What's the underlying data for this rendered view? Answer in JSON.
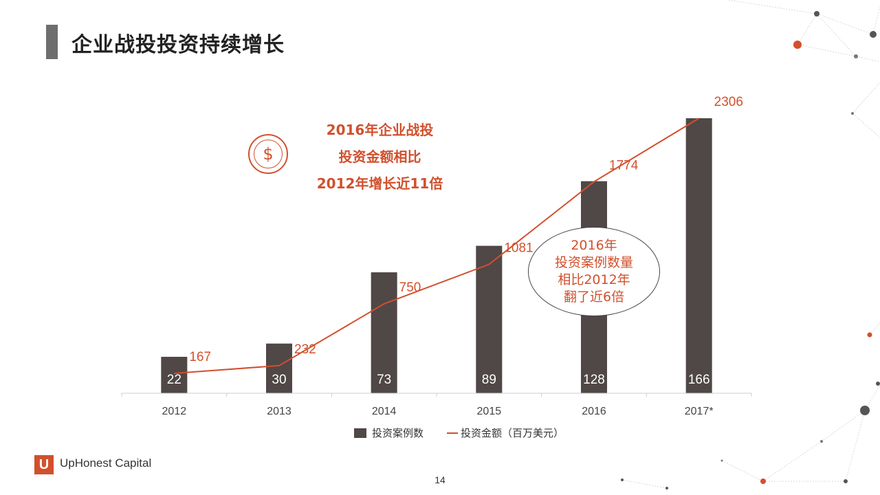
{
  "title": "企业战投投资持续增长",
  "callout": {
    "line1": "2016年企业战投",
    "line2": "投资金额相比",
    "line3": "2012年增长近11倍"
  },
  "dollar_symbol": "$",
  "ellipse_note": {
    "line1": "2016年",
    "line2": "投资案例数量",
    "line3": "相比2012年",
    "line4": "翻了近6倍"
  },
  "legend": {
    "bars": "投资案例数",
    "line": "投资金额（百万美元）"
  },
  "logo": {
    "mark": "U",
    "name": "UpHonest Capital"
  },
  "page_number": "14",
  "colors": {
    "bar": "#504747",
    "line": "#d1502d",
    "accent": "#d1502d"
  },
  "chart_data": {
    "type": "bar",
    "categories": [
      "2012",
      "2013",
      "2014",
      "2015",
      "2016",
      "2017*"
    ],
    "series": [
      {
        "name": "投资案例数",
        "type": "bar",
        "values": [
          22,
          30,
          73,
          89,
          128,
          166
        ]
      },
      {
        "name": "投资金额（百万美元）",
        "type": "line",
        "values": [
          167,
          232,
          750,
          1081,
          1774,
          2306
        ]
      }
    ],
    "legend_position": "bottom",
    "grid": false
  }
}
